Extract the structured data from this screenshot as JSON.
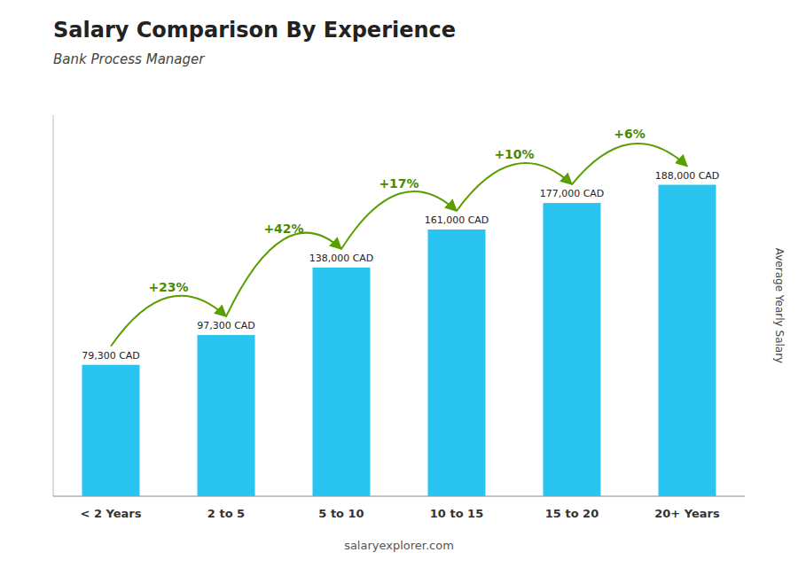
{
  "chart_data": {
    "type": "bar",
    "title": "Salary Comparison By Experience",
    "subtitle": "Bank Process Manager",
    "y_label": "Average Yearly Salary",
    "categories": [
      "< 2 Years",
      "2 to 5",
      "5 to 10",
      "10 to 15",
      "15 to 20",
      "20+ Years"
    ],
    "values": [
      79300,
      97300,
      138000,
      161000,
      177000,
      188000
    ],
    "value_labels": [
      "79,300 CAD",
      "97,300 CAD",
      "138,000 CAD",
      "161,000 CAD",
      "177,000 CAD",
      "188,000 CAD"
    ],
    "data_labels": true,
    "annotations": [
      "+23%",
      "+42%",
      "+17%",
      "+10%",
      "+6%"
    ],
    "footer": "salaryexplorer.com",
    "color": "#29c5f0",
    "ylim": [
      0,
      230000
    ],
    "tick_labels": "x",
    "grid": false
  }
}
